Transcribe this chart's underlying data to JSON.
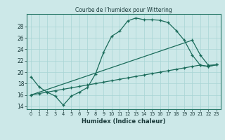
{
  "title": "Courbe de l’humidex pour Wittering",
  "xlabel": "Humidex (Indice chaleur)",
  "bg_color": "#cce8e8",
  "line_color": "#1a6b5a",
  "xlim": [
    -0.5,
    23.5
  ],
  "ylim": [
    13.5,
    30.2
  ],
  "yticks": [
    14,
    16,
    18,
    20,
    22,
    24,
    26,
    28
  ],
  "xticks": [
    0,
    1,
    2,
    3,
    4,
    5,
    6,
    7,
    8,
    9,
    10,
    11,
    12,
    13,
    14,
    15,
    16,
    17,
    18,
    19,
    20,
    21,
    22,
    23
  ],
  "line1_x": [
    0,
    1,
    2,
    3,
    4,
    5,
    6,
    7,
    8,
    9,
    10,
    11,
    12,
    13,
    14,
    15,
    16,
    17,
    18,
    19,
    20,
    21,
    22,
    23
  ],
  "line1_y": [
    19.2,
    17.4,
    16.5,
    15.8,
    14.2,
    15.8,
    16.5,
    17.3,
    19.7,
    23.5,
    26.3,
    27.2,
    29.0,
    29.5,
    29.2,
    29.2,
    29.1,
    28.7,
    27.3,
    25.6,
    23.0,
    21.2,
    21.0,
    21.3
  ],
  "line2_x": [
    0,
    1,
    2,
    3,
    4,
    5,
    6,
    7,
    8,
    9,
    10,
    11,
    12,
    13,
    14,
    15,
    16,
    17,
    18,
    19,
    20,
    21,
    22,
    23
  ],
  "line2_y": [
    16.0,
    16.25,
    16.5,
    16.75,
    17.0,
    17.25,
    17.5,
    17.75,
    18.0,
    18.25,
    18.5,
    18.75,
    19.0,
    19.25,
    19.5,
    19.75,
    20.0,
    20.25,
    20.5,
    20.75,
    21.0,
    21.25,
    21.0,
    21.3
  ],
  "line3_x": [
    0,
    20,
    21,
    22,
    23
  ],
  "line3_y": [
    16.0,
    25.6,
    23.0,
    21.2,
    21.3
  ]
}
